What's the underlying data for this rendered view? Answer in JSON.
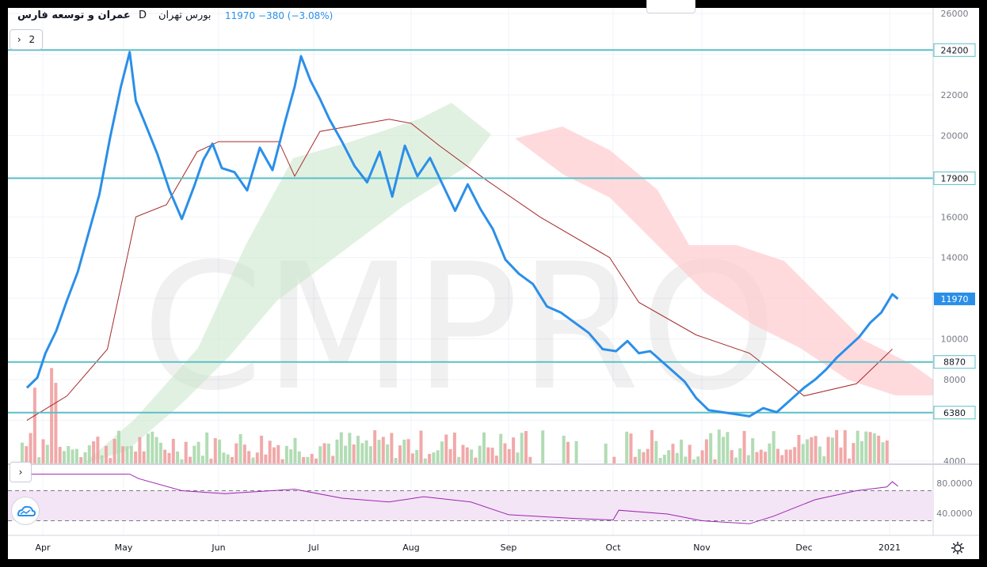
{
  "header": {
    "symbol": "عمران و توسعه فارس",
    "interval": "D",
    "exchange": "بورس تهران",
    "last": "11970",
    "change": "−380 (−3.08%)"
  },
  "controls": {
    "legend_toggle": "2",
    "collapse_chevron": "›"
  },
  "watermark": "CMPRO",
  "colors": {
    "price": "#2b8fe8",
    "level": "#5bbfc9",
    "kijun": "#a52a2a",
    "cloud_bull": "#c8e6c9",
    "cloud_bear": "#ffcdd2",
    "vol_up": "#a5d6a7",
    "vol_down": "#ef9a9a",
    "rsi": "#9c27b0",
    "rsi_band": "#f3e5f5"
  },
  "chart_data": {
    "type": "line",
    "title": "عمران و توسعه فارس",
    "interval": "D",
    "ylim": [
      4000,
      26000
    ],
    "y_ticks": [
      4000,
      6000,
      8000,
      10000,
      12000,
      14000,
      16000,
      18000,
      20000,
      22000,
      24000,
      26000
    ],
    "x_labels": [
      "Apr",
      "May",
      "Jun",
      "Jul",
      "Aug",
      "Sep",
      "Oct",
      "Nov",
      "Dec",
      "2021"
    ],
    "levels": [
      24200,
      17900,
      8870,
      6380
    ],
    "last_price": 11970,
    "price": [
      [
        "Mar 25",
        7600
      ],
      [
        "Mar 29",
        8100
      ],
      [
        "Apr 2",
        9300
      ],
      [
        "Apr 6",
        10400
      ],
      [
        "Apr 10",
        11900
      ],
      [
        "Apr 14",
        13300
      ],
      [
        "Apr 18",
        15200
      ],
      [
        "Apr 22",
        17100
      ],
      [
        "Apr 26",
        19900
      ],
      [
        "Apr 30",
        22400
      ],
      [
        "May 3",
        24100
      ],
      [
        "May 5",
        21700
      ],
      [
        "May 8",
        20600
      ],
      [
        "May 12",
        19100
      ],
      [
        "May 16",
        17300
      ],
      [
        "May 20",
        15900
      ],
      [
        "May 24",
        17500
      ],
      [
        "May 27",
        18800
      ],
      [
        "May 30",
        19600
      ],
      [
        "Jun 2",
        18400
      ],
      [
        "Jun 6",
        18200
      ],
      [
        "Jun 10",
        17300
      ],
      [
        "Jun 14",
        19400
      ],
      [
        "Jun 18",
        18300
      ],
      [
        "Jun 22",
        20700
      ],
      [
        "Jun 25",
        22400
      ],
      [
        "Jun 27",
        23900
      ],
      [
        "Jun 30",
        22700
      ],
      [
        "Jul 3",
        21800
      ],
      [
        "Jul 6",
        20800
      ],
      [
        "Jul 10",
        19700
      ],
      [
        "Jul 14",
        18500
      ],
      [
        "Jul 18",
        17700
      ],
      [
        "Jul 22",
        19200
      ],
      [
        "Jul 26",
        17000
      ],
      [
        "Jul 30",
        19500
      ],
      [
        "Aug 3",
        18000
      ],
      [
        "Aug 7",
        18900
      ],
      [
        "Aug 11",
        17600
      ],
      [
        "Aug 15",
        16300
      ],
      [
        "Aug 19",
        17600
      ],
      [
        "Aug 23",
        16400
      ],
      [
        "Aug 27",
        15400
      ],
      [
        "Aug 31",
        13900
      ],
      [
        "Sep 4",
        13200
      ],
      [
        "Sep 8",
        12700
      ],
      [
        "Sep 12",
        11600
      ],
      [
        "Sep 16",
        11300
      ],
      [
        "Sep 20",
        10800
      ],
      [
        "Sep 24",
        10300
      ],
      [
        "Sep 28",
        9500
      ],
      [
        "Oct 2",
        9400
      ],
      [
        "Oct 6",
        9900
      ],
      [
        "Oct 10",
        9300
      ],
      [
        "Oct 14",
        9400
      ],
      [
        "Oct 18",
        8900
      ],
      [
        "Oct 22",
        8400
      ],
      [
        "Oct 26",
        7900
      ],
      [
        "Oct 30",
        7100
      ],
      [
        "Nov 3",
        6500
      ],
      [
        "Nov 7",
        6400
      ],
      [
        "Nov 11",
        6300
      ],
      [
        "Nov 15",
        6200
      ],
      [
        "Nov 19",
        6600
      ],
      [
        "Nov 23",
        6400
      ],
      [
        "Nov 27",
        7000
      ],
      [
        "Dec 1",
        7600
      ],
      [
        "Dec 5",
        8000
      ],
      [
        "Dec 9",
        8500
      ],
      [
        "Dec 13",
        9100
      ],
      [
        "Dec 17",
        9600
      ],
      [
        "Dec 21",
        10100
      ],
      [
        "Dec 25",
        10800
      ],
      [
        "Dec 29",
        11300
      ],
      [
        "Jan 2",
        12200
      ],
      [
        "Jan 4",
        11970
      ]
    ],
    "volume": [
      [
        "Apr",
        "up",
        2200
      ],
      [
        "Apr",
        "up",
        3100
      ],
      [
        "Apr",
        "down",
        1500
      ],
      [
        "May",
        "up",
        1900
      ],
      [
        "May",
        "down",
        2600
      ],
      [
        "Jun",
        "up",
        1400
      ],
      [
        "Jun",
        "down",
        2300
      ],
      [
        "Jun",
        "up",
        1700
      ],
      [
        "Jul",
        "down",
        2500
      ],
      [
        "Jul",
        "up",
        1800
      ],
      [
        "Jul",
        "down",
        2100
      ],
      [
        "Aug",
        "up",
        1700
      ],
      [
        "Aug",
        "down",
        1600
      ],
      [
        "Aug",
        "up",
        1500
      ],
      [
        "Sep",
        "up",
        900
      ],
      [
        "Sep",
        "down",
        700
      ],
      [
        "Oct",
        "up",
        1300
      ],
      [
        "Oct",
        "down",
        900
      ],
      [
        "Nov",
        "up",
        600
      ],
      [
        "Nov",
        "down",
        500
      ],
      [
        "Dec",
        "up",
        1700
      ],
      [
        "Dec",
        "down",
        1100
      ],
      [
        "Dec",
        "down",
        1900
      ],
      [
        "2021",
        "down",
        1600
      ]
    ],
    "rsi": {
      "ylim": [
        0,
        100
      ],
      "y_ticks": [
        40,
        80
      ],
      "band": [
        30,
        70
      ],
      "values": [
        [
          "Mar 25",
          92
        ],
        [
          "Apr 15",
          92
        ],
        [
          "May 3",
          92
        ],
        [
          "May 6",
          86
        ],
        [
          "May 20",
          70
        ],
        [
          "Jun 3",
          66
        ],
        [
          "Jun 25",
          72
        ],
        [
          "Jul 10",
          60
        ],
        [
          "Jul 25",
          55
        ],
        [
          "Aug 5",
          62
        ],
        [
          "Aug 20",
          55
        ],
        [
          "Sep 1",
          38
        ],
        [
          "Sep 20",
          33
        ],
        [
          "Oct 1",
          31
        ],
        [
          "Oct 3",
          44
        ],
        [
          "Oct 20",
          39
        ],
        [
          "Nov 1",
          30
        ],
        [
          "Nov 15",
          26
        ],
        [
          "Nov 22",
          36
        ],
        [
          "Dec 5",
          58
        ],
        [
          "Dec 20",
          70
        ],
        [
          "Dec 31",
          75
        ],
        [
          "Jan 2",
          82
        ],
        [
          "Jan 4",
          76
        ]
      ]
    }
  }
}
